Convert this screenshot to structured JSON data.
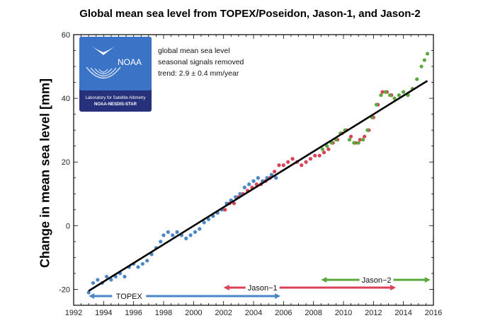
{
  "chart_data": {
    "type": "scatter",
    "title": "Global mean sea level from TOPEX/Poseidon, Jason-1, and Jason-2",
    "xlabel": "",
    "ylabel": "Change in mean sea level [mm]",
    "xlim": [
      1992,
      2016
    ],
    "ylim": [
      -25,
      60
    ],
    "x_ticks": [
      1992,
      1994,
      1996,
      1998,
      2000,
      2002,
      2004,
      2006,
      2008,
      2010,
      2012,
      2014,
      2016
    ],
    "y_ticks": [
      -20,
      0,
      20,
      40,
      60
    ],
    "grid": false,
    "annotations": [
      "global mean sea level",
      "seasonal signals removed",
      "trend:  2.9 ± 0.4 mm/year"
    ],
    "trend": {
      "x": [
        1993.0,
        2015.6
      ],
      "y": [
        -20.5,
        45.5
      ]
    },
    "series": [
      {
        "name": "TOPEX",
        "color": "#4a86c4",
        "x": [
          1993.0,
          1993.3,
          1993.6,
          1993.9,
          1994.2,
          1994.5,
          1994.8,
          1995.1,
          1995.4,
          1995.7,
          1996.0,
          1996.3,
          1996.6,
          1996.9,
          1997.2,
          1997.5,
          1997.8,
          1998.0,
          1998.3,
          1998.6,
          1998.9,
          1999.2,
          1999.5,
          1999.8,
          2000.1,
          2000.4,
          2000.7,
          2001.0,
          2001.3,
          2001.6,
          2001.9,
          2002.2,
          2002.5,
          2002.8,
          2003.1,
          2003.4,
          2003.7,
          2004.0,
          2004.3,
          2004.6,
          2004.9,
          2005.2,
          2005.5
        ],
        "y": [
          -21,
          -18,
          -17,
          -18,
          -16,
          -17,
          -16,
          -15,
          -16,
          -13,
          -12,
          -13,
          -12,
          -11,
          -9,
          -7,
          -5,
          -3,
          -2,
          -3,
          -2,
          -3,
          -4,
          -3,
          -2,
          -1,
          1,
          2,
          3,
          4,
          5,
          7,
          8,
          9,
          10,
          12,
          13,
          14,
          15,
          14,
          15,
          16,
          15
        ]
      },
      {
        "name": "Jason−1",
        "color": "#d94157",
        "x": [
          2002.1,
          2002.4,
          2002.7,
          2003.0,
          2003.3,
          2003.6,
          2003.9,
          2004.2,
          2004.5,
          2004.8,
          2005.1,
          2005.4,
          2005.7,
          2006.0,
          2006.3,
          2006.6,
          2006.9,
          2007.2,
          2007.5,
          2007.8,
          2008.1,
          2008.4,
          2008.7,
          2009.0,
          2009.3,
          2009.6,
          2009.9,
          2010.2,
          2010.5,
          2010.8,
          2011.1,
          2011.4,
          2011.7,
          2012.0,
          2012.3,
          2012.6,
          2012.9,
          2013.2
        ],
        "y": [
          5,
          7,
          7,
          9,
          10,
          11,
          12,
          13,
          13,
          14,
          15,
          17,
          19,
          19,
          20,
          21,
          20,
          19,
          20,
          21,
          22,
          22,
          23,
          24,
          26,
          27,
          29,
          30,
          28,
          26,
          27,
          28,
          30,
          34,
          38,
          42,
          42,
          41
        ]
      },
      {
        "name": "Jason−2",
        "color": "#5aa83c",
        "x": [
          2008.6,
          2008.9,
          2009.2,
          2009.5,
          2009.8,
          2010.1,
          2010.4,
          2010.7,
          2011.0,
          2011.3,
          2011.6,
          2011.9,
          2012.2,
          2012.5,
          2012.8,
          2013.1,
          2013.4,
          2013.7,
          2014.0,
          2014.3,
          2014.6,
          2014.9,
          2015.2,
          2015.4,
          2015.6
        ],
        "y": [
          24,
          25,
          26,
          27,
          29,
          30,
          27,
          26,
          26,
          27,
          30,
          34,
          38,
          41,
          42,
          41,
          40,
          41,
          42,
          41,
          43,
          46,
          50,
          52,
          54
        ]
      }
    ],
    "missions": [
      {
        "label": "TOPEX",
        "start": 1993.0,
        "end": 2005.8,
        "row": 0,
        "color": "#4a86c4",
        "label_x": 1995.7
      },
      {
        "label": "Jason−1",
        "start": 2002.0,
        "end": 2013.5,
        "row": 1,
        "color": "#d94157",
        "label_x": 2004.6
      },
      {
        "label": "Jason−2",
        "start": 2008.5,
        "end": 2015.8,
        "row": 2,
        "color": "#5aa83c",
        "label_x": 2012.2
      }
    ]
  },
  "logo": {
    "name": "NOAA",
    "caption_line1": "Laboratory for Satellite Altimetry",
    "caption_line2": "NOAA-NESDIS-STAR"
  }
}
